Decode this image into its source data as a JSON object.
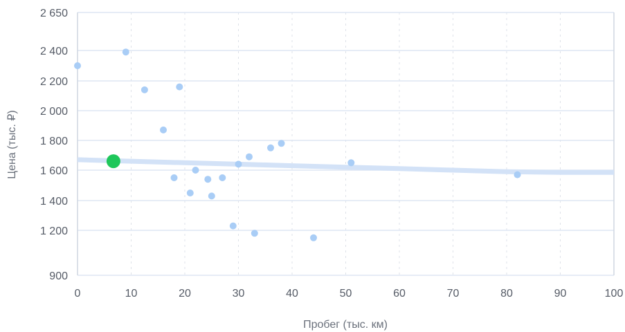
{
  "chart_data": {
    "type": "scatter",
    "xlabel": "Пробег (тыс. км)",
    "ylabel": "Цена (тыс. ₽)",
    "xlim": [
      0,
      100
    ],
    "ylim": [
      900,
      2650
    ],
    "x_ticks": [
      0,
      10,
      20,
      30,
      40,
      50,
      60,
      70,
      80,
      90,
      100
    ],
    "y_ticks": [
      {
        "value": 900,
        "label": "900"
      },
      {
        "value": 1200,
        "label": "1 200"
      },
      {
        "value": 1400,
        "label": "1 400"
      },
      {
        "value": 1600,
        "label": "1 600"
      },
      {
        "value": 1800,
        "label": "1 800"
      },
      {
        "value": 2000,
        "label": "2 000"
      },
      {
        "value": 2200,
        "label": "2 200"
      },
      {
        "value": 2400,
        "label": "2 400"
      },
      {
        "value": 2650,
        "label": "2 650"
      }
    ],
    "grid": true,
    "series": [
      {
        "role": "listings",
        "color": "#a9cdf6",
        "points": [
          {
            "x": 0,
            "y": 2300
          },
          {
            "x": 9,
            "y": 2390
          },
          {
            "x": 12.5,
            "y": 2140
          },
          {
            "x": 19,
            "y": 2160
          },
          {
            "x": 16,
            "y": 1870
          },
          {
            "x": 18,
            "y": 1550
          },
          {
            "x": 21,
            "y": 1450
          },
          {
            "x": 22,
            "y": 1600
          },
          {
            "x": 24.3,
            "y": 1540
          },
          {
            "x": 25,
            "y": 1430
          },
          {
            "x": 27,
            "y": 1550
          },
          {
            "x": 29,
            "y": 1230
          },
          {
            "x": 30,
            "y": 1640
          },
          {
            "x": 32,
            "y": 1690
          },
          {
            "x": 33,
            "y": 1180
          },
          {
            "x": 36,
            "y": 1750
          },
          {
            "x": 38,
            "y": 1780
          },
          {
            "x": 44,
            "y": 1150
          },
          {
            "x": 51,
            "y": 1650
          },
          {
            "x": 82,
            "y": 1570
          }
        ]
      },
      {
        "role": "highlight",
        "color": "#1ec75a",
        "points": [
          {
            "x": 6.7,
            "y": 1660
          }
        ]
      }
    ],
    "trend": {
      "color": "#d3e2f7",
      "points": [
        {
          "x": 0,
          "y": 1670
        },
        {
          "x": 10,
          "y": 1660
        },
        {
          "x": 20,
          "y": 1650
        },
        {
          "x": 30,
          "y": 1640
        },
        {
          "x": 40,
          "y": 1630
        },
        {
          "x": 50,
          "y": 1620
        },
        {
          "x": 60,
          "y": 1610
        },
        {
          "x": 70,
          "y": 1600
        },
        {
          "x": 80,
          "y": 1590
        },
        {
          "x": 90,
          "y": 1585
        },
        {
          "x": 100,
          "y": 1585
        }
      ]
    },
    "colors": {
      "h_grid": "#dde6f3",
      "v_grid": "#dde1e8",
      "axis": "#cfd6e1"
    }
  }
}
